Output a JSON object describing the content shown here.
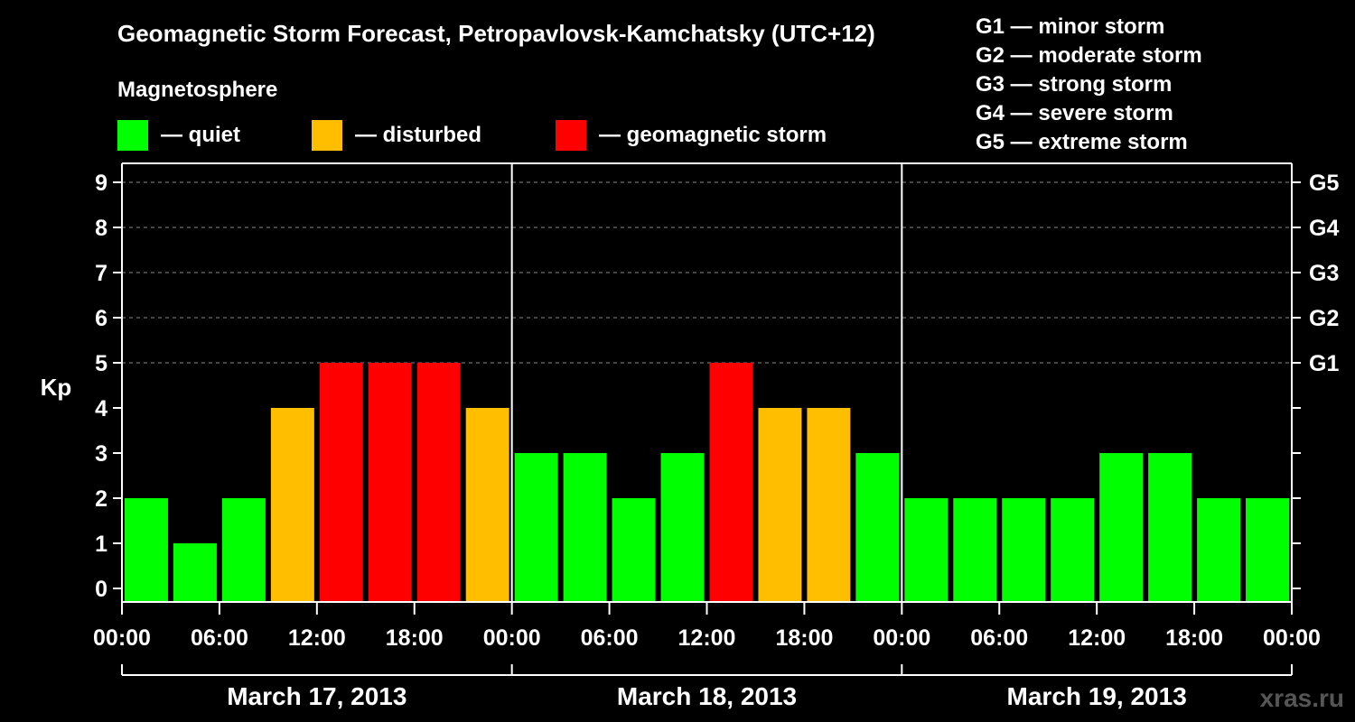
{
  "header": {
    "title": "Geomagnetic Storm Forecast, Petropavlovsk-Kamchatsky (UTC+12)",
    "subtitle": "Magnetosphere"
  },
  "legend": {
    "items": [
      {
        "label": "— quiet",
        "color": "#00ff00"
      },
      {
        "label": "— disturbed",
        "color": "#ffbf00"
      },
      {
        "label": "— geomagnetic storm",
        "color": "#ff0000"
      }
    ]
  },
  "storm_scale": [
    "G1 — minor storm",
    "G2 — moderate storm",
    "G3 — strong storm",
    "G4 — severe storm",
    "G5 — extreme storm"
  ],
  "watermark": "xras.ru",
  "chart_data": {
    "type": "bar",
    "ylabel": "Kp",
    "ylim": [
      0,
      9
    ],
    "yticks": [
      "0",
      "1",
      "2",
      "3",
      "4",
      "5",
      "6",
      "7",
      "8",
      "9"
    ],
    "right_axis_labels": [
      {
        "value": 5,
        "label": "G1"
      },
      {
        "value": 6,
        "label": "G2"
      },
      {
        "value": 7,
        "label": "G3"
      },
      {
        "value": 8,
        "label": "G4"
      },
      {
        "value": 9,
        "label": "G5"
      }
    ],
    "xtick_labels": [
      "00:00",
      "06:00",
      "12:00",
      "18:00",
      "00:00",
      "06:00",
      "12:00",
      "18:00",
      "00:00",
      "06:00",
      "12:00",
      "18:00",
      "00:00"
    ],
    "days": [
      "March 17, 2013",
      "March 18, 2013",
      "March 19, 2013"
    ],
    "interval_hours": 3,
    "values": [
      2,
      1,
      2,
      4,
      5,
      5,
      5,
      4,
      3,
      3,
      2,
      3,
      5,
      4,
      4,
      3,
      2,
      2,
      2,
      2,
      3,
      3,
      2,
      2
    ],
    "thresholds": {
      "disturbed": 4,
      "storm": 5
    },
    "colors": {
      "quiet": "#00ff00",
      "disturbed": "#ffbf00",
      "storm": "#ff0000",
      "grid": "#888888",
      "axis": "#ffffff"
    },
    "grid": true
  }
}
